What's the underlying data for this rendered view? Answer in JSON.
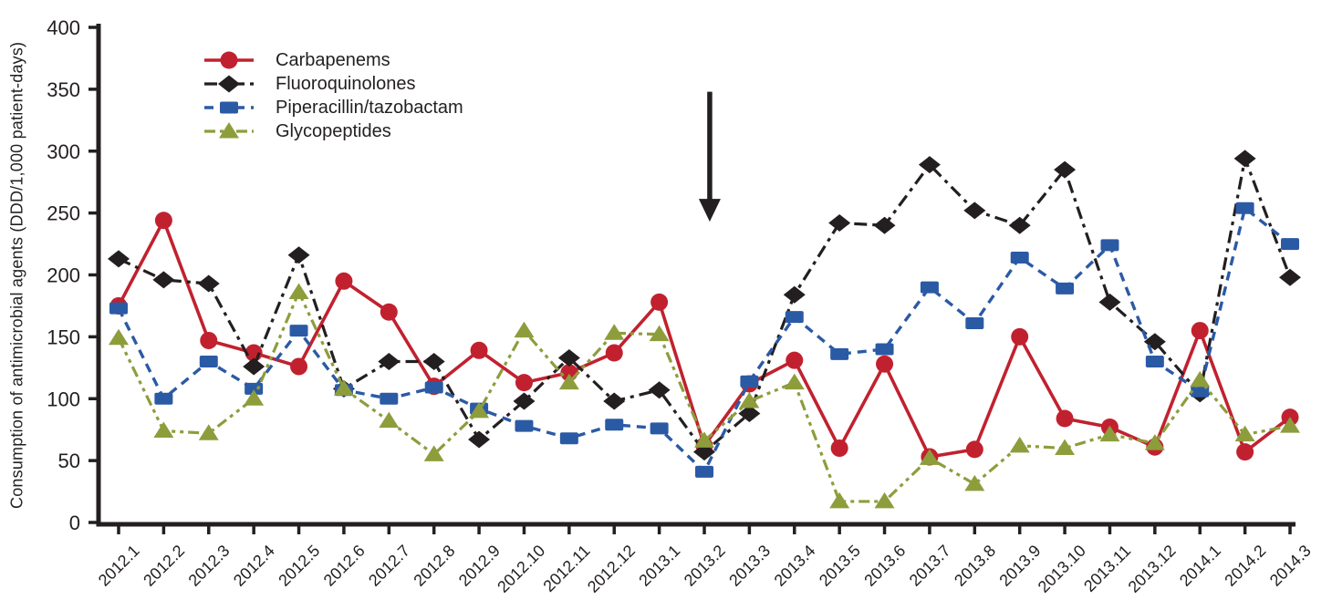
{
  "figure": {
    "background": "#ffffff",
    "axis_color": "#231f20"
  },
  "chart_data": {
    "type": "line",
    "title": "",
    "xlabel": "",
    "ylabel": "Consumption of antimicrobial agents (DDD/1,000 patient-days)",
    "ylim": [
      0,
      400
    ],
    "yticks": [
      0,
      50,
      100,
      150,
      200,
      250,
      300,
      350,
      400
    ],
    "grid": false,
    "legend_position": "upper-left",
    "categories": [
      "2012.1",
      "2012.2",
      "2012.3",
      "2012.4",
      "2012.5",
      "2012.6",
      "2012.7",
      "2012.8",
      "2012.9",
      "2012.10",
      "2012.11",
      "2012.12",
      "2013.1",
      "2013.2",
      "2013.3",
      "2013.4",
      "2013.5",
      "2013.6",
      "2013.7",
      "2013.8",
      "2013.9",
      "2013.10",
      "2013.11",
      "2013.12",
      "2014.1",
      "2014.2",
      "2014.3"
    ],
    "series": [
      {
        "id": "carbapenems",
        "name": "Carbapenems",
        "color": "#c1212f",
        "marker": "circle",
        "line_style": "solid",
        "dash": "",
        "width": 3.6,
        "values": [
          175,
          244,
          147,
          137,
          126,
          195,
          170,
          110,
          139,
          113,
          121,
          137,
          178,
          62,
          112,
          131,
          60,
          128,
          53,
          59,
          150,
          84,
          77,
          61,
          155,
          57,
          85
        ]
      },
      {
        "id": "fluoroquinolones",
        "name": "Fluoroquinolones",
        "color": "#231f20",
        "marker": "diamond",
        "line_style": "dash-dot",
        "dash": "14 6 4 6",
        "width": 3.2,
        "values": [
          213,
          196,
          193,
          126,
          216,
          108,
          130,
          130,
          67,
          98,
          133,
          98,
          107,
          57,
          88,
          184,
          242,
          240,
          289,
          252,
          240,
          285,
          178,
          146,
          104,
          294,
          198
        ]
      },
      {
        "id": "piperacillin-tazobactam",
        "name": "Piperacillin/tazobactam",
        "color": "#2b5aa5",
        "marker": "square",
        "line_style": "dashed",
        "dash": "10 7",
        "width": 3.4,
        "values": [
          173,
          100,
          130,
          108,
          155,
          107,
          100,
          109,
          92,
          78,
          68,
          79,
          76,
          41,
          114,
          166,
          136,
          140,
          190,
          161,
          214,
          189,
          224,
          130,
          106,
          254,
          225
        ]
      },
      {
        "id": "glycopeptides",
        "name": "Glycopeptides",
        "color": "#8e9d3c",
        "marker": "triangle",
        "line_style": "dash-dot-dot",
        "dash": "12 5 4 5 4 5",
        "width": 3.2,
        "values": [
          149,
          74,
          72,
          100,
          186,
          108,
          82,
          55,
          90,
          155,
          113,
          153,
          152,
          66,
          98,
          113,
          17,
          17,
          52,
          31,
          62,
          60,
          71,
          64,
          115,
          71,
          78
        ]
      }
    ],
    "annotation": {
      "type": "down-arrow",
      "between_categories": [
        "2013.2",
        "2013.3"
      ],
      "x_index": 13.12,
      "y_top_value": 348,
      "y_tip_value": 243
    }
  }
}
